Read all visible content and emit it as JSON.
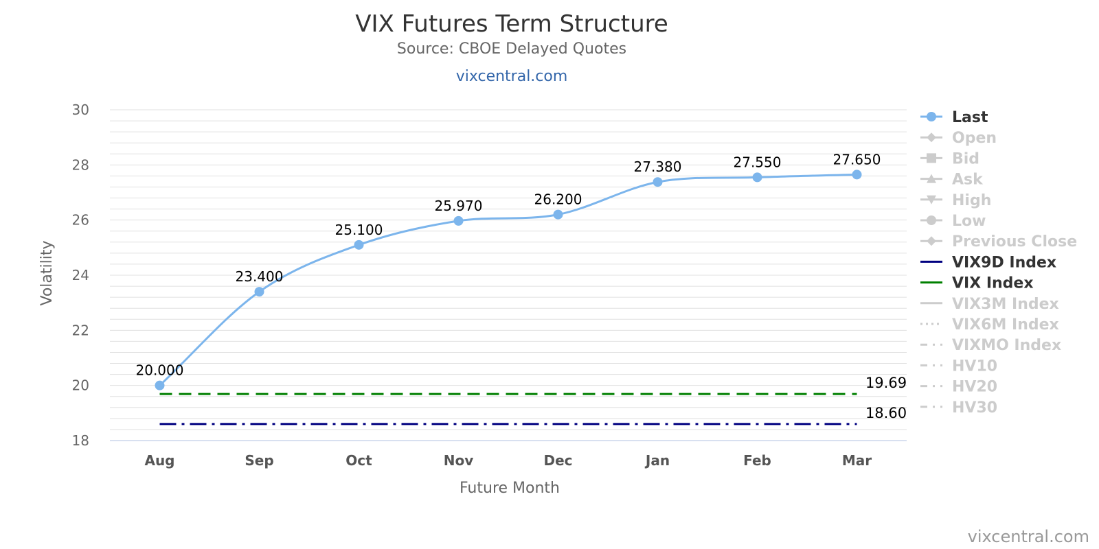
{
  "header": {
    "title": "VIX Futures Term Structure",
    "subtitle": "Source: CBOE Delayed Quotes",
    "link": "vixcentral.com"
  },
  "credit": "vixcentral.com",
  "colors": {
    "last": "#7cb5ec",
    "vix9d": "#000080",
    "vix": "#008000",
    "inactive": "#cccccc",
    "grid": "#e0e0e0",
    "axis": "#ccd6eb"
  },
  "chart_data": {
    "type": "line",
    "title": "VIX Futures Term Structure",
    "subtitle": "Source: CBOE Delayed Quotes",
    "xlabel": "Future Month",
    "ylabel": "Volatility",
    "ylim": [
      18,
      30
    ],
    "yticks": [
      18,
      20,
      22,
      24,
      26,
      28,
      30
    ],
    "grid": true,
    "legend_position": "right",
    "categories": [
      "Aug",
      "Sep",
      "Oct",
      "Nov",
      "Dec",
      "Jan",
      "Feb",
      "Mar"
    ],
    "series": [
      {
        "name": "Last",
        "values": [
          20.0,
          23.4,
          25.1,
          25.97,
          26.2,
          27.38,
          27.55,
          27.65
        ],
        "labels": [
          "20.000",
          "23.400",
          "25.100",
          "25.970",
          "26.200",
          "27.380",
          "27.550",
          "27.650"
        ]
      }
    ],
    "reference_lines": [
      {
        "name": "VIX Index",
        "value": 19.69,
        "label": "19.69",
        "style": "dashed"
      },
      {
        "name": "VIX9D Index",
        "value": 18.6,
        "label": "18.60",
        "style": "dash-dot"
      }
    ],
    "legend": [
      {
        "name": "Last",
        "active": true,
        "marker": "circle"
      },
      {
        "name": "Open",
        "active": false,
        "marker": "diamond"
      },
      {
        "name": "Bid",
        "active": false,
        "marker": "square"
      },
      {
        "name": "Ask",
        "active": false,
        "marker": "triangle"
      },
      {
        "name": "High",
        "active": false,
        "marker": "triangle-down"
      },
      {
        "name": "Low",
        "active": false,
        "marker": "circle"
      },
      {
        "name": "Previous Close",
        "active": false,
        "marker": "diamond"
      },
      {
        "name": "VIX9D Index",
        "active": true,
        "marker": "line"
      },
      {
        "name": "VIX Index",
        "active": true,
        "marker": "line"
      },
      {
        "name": "VIX3M Index",
        "active": false,
        "marker": "line"
      },
      {
        "name": "VIX6M Index",
        "active": false,
        "marker": "dotted-line"
      },
      {
        "name": "VIXMO Index",
        "active": false,
        "marker": "dash-dot-line"
      },
      {
        "name": "HV10",
        "active": false,
        "marker": "dash-dot-line"
      },
      {
        "name": "HV20",
        "active": false,
        "marker": "dash-dot-line"
      },
      {
        "name": "HV30",
        "active": false,
        "marker": "dash-dot-line"
      }
    ]
  }
}
